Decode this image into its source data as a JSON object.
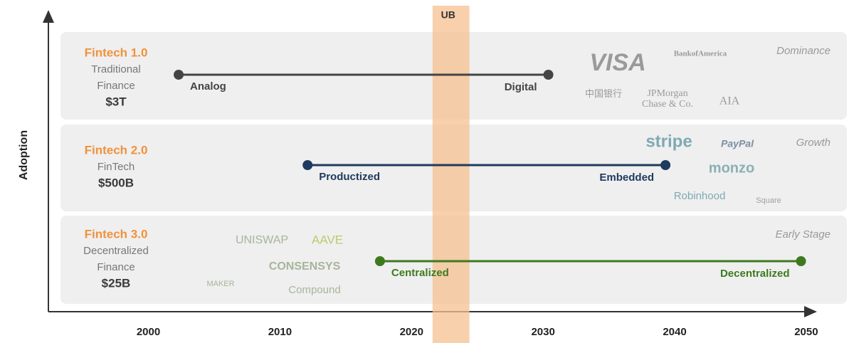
{
  "chart_data": {
    "type": "timeline",
    "y_label": "Adoption",
    "xlim": [
      1992.4,
      2050.6
    ],
    "xticks": [
      2000,
      2010,
      2020,
      2030,
      2040,
      2050
    ],
    "highlight": {
      "label": "UB",
      "start": 2021.6,
      "end": 2024.4,
      "color": "#f6c08f"
    },
    "rows": [
      {
        "name": "Fintech 1.0",
        "description": [
          "Traditional",
          "Finance"
        ],
        "market": "$3T",
        "stage": "Dominance",
        "start": 2002.3,
        "end": 2030.4,
        "start_label": "Analog",
        "end_label": "Digital",
        "color": "#444444",
        "logos": [
          "VISA",
          "BankofAmerica",
          "中国银行",
          "JPMorgan",
          "Chase & Co.",
          "AIA"
        ]
      },
      {
        "name": "Fintech 2.0",
        "description": [
          "FinTech"
        ],
        "market": "$500B",
        "stage": "Growth",
        "start": 2012.1,
        "end": 2039.3,
        "start_label": "Productized",
        "end_label": "Embedded",
        "color": "#1f3a5f",
        "logos": [
          "stripe",
          "PayPal",
          "monzo",
          "Robinhood",
          "Square"
        ]
      },
      {
        "name": "Fintech 3.0",
        "description": [
          "Decentralized",
          "Finance"
        ],
        "market": "$25B",
        "stage": "Early Stage",
        "start": 2017.6,
        "end": 2049.6,
        "start_label": "Centralized",
        "end_label": "Decentralized",
        "color": "#3d7a1e",
        "logos": [
          "UNISWAP",
          "AAVE",
          "MAKER",
          "CONSENSYS",
          "Compound"
        ]
      }
    ]
  }
}
